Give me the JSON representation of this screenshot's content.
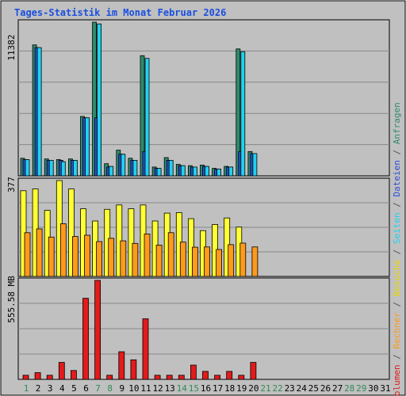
{
  "chart_data": {
    "type": "bar",
    "title": "Tages-Statistik im Monat Februar 2026",
    "days": [
      "1",
      "2",
      "3",
      "4",
      "5",
      "6",
      "7",
      "8",
      "9",
      "10",
      "11",
      "12",
      "13",
      "14",
      "15",
      "16",
      "17",
      "18",
      "19",
      "20",
      "21",
      "22",
      "23",
      "24",
      "25",
      "26",
      "27",
      "28",
      "29",
      "30",
      "31"
    ],
    "weekend_days": [
      "1",
      "7",
      "8",
      "14",
      "15",
      "21",
      "22",
      "28",
      "29"
    ],
    "panels": {
      "top": {
        "max_label": "11382",
        "max": 11382,
        "series": [
          {
            "name": "Anfragen",
            "color": "#2e8b6e",
            "values": [
              1300,
              9700,
              1250,
              1200,
              1250,
              4400,
              11382,
              900,
              1900,
              1300,
              8900,
              650,
              1350,
              850,
              750,
              800,
              550,
              700,
              9400,
              1800,
              0,
              0,
              0,
              0,
              0,
              0,
              0,
              0,
              0,
              0,
              0
            ]
          },
          {
            "name": "Dateien",
            "color": "#2b4fd8",
            "values": [
              1200,
              9500,
              1150,
              1150,
              1150,
              4300,
              4300,
              650,
              1600,
              1150,
              1800,
              550,
              1150,
              750,
              650,
              700,
              500,
              650,
              1800,
              1650,
              0,
              0,
              0,
              0,
              0,
              0,
              0,
              0,
              0,
              0,
              0
            ]
          },
          {
            "name": "Seiten",
            "color": "#1ed3f0",
            "values": [
              1200,
              9500,
              1150,
              1050,
              1150,
              4300,
              11250,
              700,
              1600,
              1150,
              8700,
              550,
              1150,
              750,
              650,
              700,
              500,
              650,
              9200,
              1650,
              0,
              0,
              0,
              0,
              0,
              0,
              0,
              0,
              0,
              0,
              0
            ]
          }
        ]
      },
      "middle": {
        "max_label": "377",
        "max": 377,
        "series": [
          {
            "name": "Besuche",
            "color": "#ffff33",
            "values": [
              337,
              344,
              260,
              377,
              344,
              266,
              218,
              264,
              281,
              266,
              281,
              218,
              249,
              251,
              227,
              180,
              204,
              230,
              194,
              0,
              0,
              0,
              0,
              0,
              0,
              0,
              0,
              0,
              0,
              0,
              0
            ]
          },
          {
            "name": "Rechner",
            "color": "#ff9a1a",
            "values": [
              172,
              187,
              155,
              207,
              157,
              162,
              137,
              150,
              140,
              130,
              167,
              123,
              172,
              135,
              115,
              116,
              106,
              125,
              131,
              116,
              0,
              0,
              0,
              0,
              0,
              0,
              0,
              0,
              0,
              0,
              0
            ]
          }
        ]
      },
      "bottom": {
        "max_label": "555.58 MB",
        "max": 555.58,
        "series": [
          {
            "name": "Volumen",
            "color": "#e21b1b",
            "values": [
              23,
              38,
              23,
              95,
              50,
              455,
              555.58,
              23,
              155,
              110,
              340,
              23,
              23,
              23,
              80,
              45,
              23,
              45,
              23,
              95,
              0,
              0,
              0,
              0,
              0,
              0,
              0,
              0,
              0,
              0,
              0
            ]
          }
        ]
      }
    },
    "legend_right": [
      {
        "text": "Volumen",
        "color": "#e21b1b"
      },
      {
        "text": " / ",
        "color": "#555555"
      },
      {
        "text": "Rechner",
        "color": "#ff9a1a"
      },
      {
        "text": " / ",
        "color": "#555555"
      },
      {
        "text": "Besuche",
        "color": "#e8d800"
      },
      {
        "text": " / ",
        "color": "#555555"
      },
      {
        "text": "Seiten",
        "color": "#1ed3f0"
      },
      {
        "text": " / ",
        "color": "#555555"
      },
      {
        "text": "Dateien",
        "color": "#2b4fd8"
      },
      {
        "text": " / ",
        "color": "#555555"
      },
      {
        "text": "Anfragen",
        "color": "#2e8b6e"
      }
    ],
    "colors": {
      "title": "#1a4fe0",
      "weekday_label": "#000000",
      "weekend_label": "#2e8b57",
      "panel_bg": "#c0c0c0",
      "page_bg": "#ffffff"
    }
  }
}
